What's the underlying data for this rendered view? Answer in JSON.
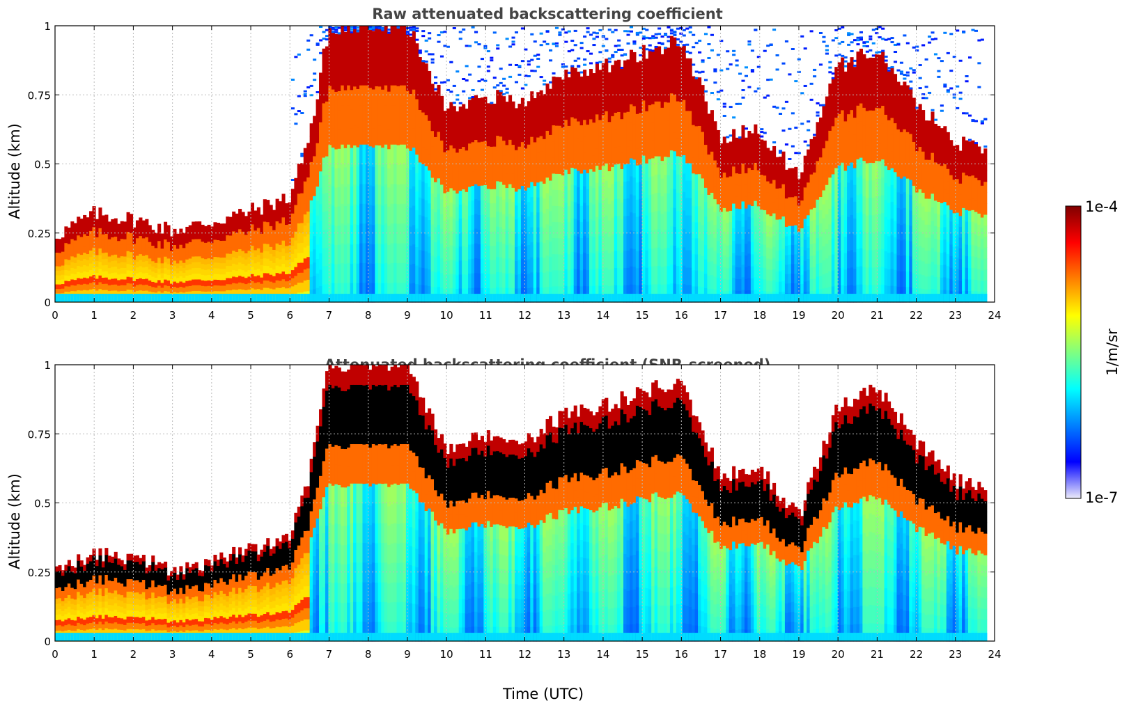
{
  "chart_data": [
    {
      "type": "heatmap",
      "title": "Raw attenuated backscattering coefficient",
      "xlabel": "",
      "ylabel": "Altitude (km)",
      "xlim": [
        0,
        24
      ],
      "ylim": [
        0,
        1
      ],
      "xticks": [
        "0",
        "1",
        "2",
        "3",
        "4",
        "5",
        "6",
        "7",
        "8",
        "9",
        "10",
        "11",
        "12",
        "13",
        "14",
        "15",
        "16",
        "17",
        "18",
        "19",
        "20",
        "21",
        "22",
        "23",
        "24"
      ],
      "yticks": [
        "0",
        "0.25",
        "0.5",
        "0.75",
        "1"
      ],
      "grid": true,
      "colorscale": "jet",
      "zlim": [
        "1e-7",
        "1e-4"
      ],
      "cloud_top_km": [
        {
          "t": 0,
          "z": 0.24
        },
        {
          "t": 1,
          "z": 0.32
        },
        {
          "t": 2,
          "z": 0.3
        },
        {
          "t": 3,
          "z": 0.26
        },
        {
          "t": 4,
          "z": 0.29
        },
        {
          "t": 5,
          "z": 0.33
        },
        {
          "t": 6,
          "z": 0.38
        },
        {
          "t": 6.5,
          "z": 0.6
        },
        {
          "t": 7,
          "z": 1.0
        },
        {
          "t": 8,
          "z": 1.0
        },
        {
          "t": 9,
          "z": 1.0
        },
        {
          "t": 10,
          "z": 0.7
        },
        {
          "t": 11,
          "z": 0.75
        },
        {
          "t": 12,
          "z": 0.72
        },
        {
          "t": 13,
          "z": 0.82
        },
        {
          "t": 14,
          "z": 0.85
        },
        {
          "t": 15,
          "z": 0.9
        },
        {
          "t": 16,
          "z": 0.95
        },
        {
          "t": 17,
          "z": 0.6
        },
        {
          "t": 18,
          "z": 0.62
        },
        {
          "t": 19,
          "z": 0.45
        },
        {
          "t": 20,
          "z": 0.85
        },
        {
          "t": 21,
          "z": 0.92
        },
        {
          "t": 22,
          "z": 0.72
        },
        {
          "t": 23,
          "z": 0.58
        },
        {
          "t": 23.8,
          "z": 0.56
        }
      ]
    },
    {
      "type": "heatmap",
      "title": "Attenuated backscattering coefficient (SNR-screened)",
      "xlabel": "Time (UTC)",
      "ylabel": "Altitude (km)",
      "xlim": [
        0,
        24
      ],
      "ylim": [
        0,
        1
      ],
      "xticks": [
        "0",
        "1",
        "2",
        "3",
        "4",
        "5",
        "6",
        "7",
        "8",
        "9",
        "10",
        "11",
        "12",
        "13",
        "14",
        "15",
        "16",
        "17",
        "18",
        "19",
        "20",
        "21",
        "22",
        "23",
        "24"
      ],
      "yticks": [
        "0",
        "0.25",
        "0.5",
        "0.75",
        "1"
      ],
      "grid": true,
      "colorscale": "jet",
      "zlim": [
        "1e-7",
        "1e-4"
      ]
    }
  ],
  "colorbar": {
    "label": "1/m/sr",
    "max_label": "1e-4",
    "min_label": "1e-7",
    "colors": [
      "#ecebfa",
      "#0000ff",
      "#0080ff",
      "#00ffff",
      "#80ff80",
      "#ffff00",
      "#ff8000",
      "#ff0000",
      "#800000"
    ]
  }
}
